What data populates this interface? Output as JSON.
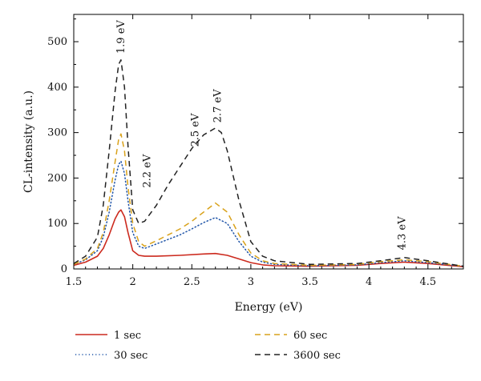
{
  "chart_data": {
    "type": "line",
    "title": "",
    "xlabel": "Energy (eV)",
    "ylabel": "CL-intensity (a.u.)",
    "xlim": [
      1.5,
      4.8
    ],
    "ylim": [
      0,
      560
    ],
    "x_ticks": [
      1.5,
      2,
      2.5,
      3,
      3.5,
      4,
      4.5
    ],
    "x_tick_labels": [
      "1.5",
      "2",
      "2.5",
      "3",
      "3.5",
      "4",
      "4.5"
    ],
    "y_ticks": [
      0,
      100,
      200,
      300,
      400,
      500
    ],
    "y_tick_labels": [
      "0",
      "100",
      "200",
      "300",
      "400",
      "500"
    ],
    "grid": false,
    "legend_position": "bottom",
    "series": [
      {
        "name": "1 sec",
        "color": "#cc2a1e",
        "style": "solid",
        "x": [
          1.5,
          1.6,
          1.7,
          1.75,
          1.8,
          1.85,
          1.88,
          1.9,
          1.93,
          1.96,
          2.0,
          2.05,
          2.1,
          2.2,
          2.4,
          2.6,
          2.7,
          2.8,
          2.9,
          3.0,
          3.1,
          3.2,
          3.5,
          3.9,
          4.1,
          4.3,
          4.5,
          4.8
        ],
        "values": [
          8,
          15,
          28,
          45,
          75,
          110,
          125,
          130,
          115,
          80,
          40,
          30,
          28,
          28,
          30,
          33,
          34,
          30,
          22,
          14,
          9,
          7,
          6,
          8,
          12,
          15,
          12,
          5
        ]
      },
      {
        "name": "30 sec",
        "color": "#2055a8",
        "style": "dotted",
        "x": [
          1.5,
          1.6,
          1.7,
          1.75,
          1.8,
          1.85,
          1.88,
          1.9,
          1.93,
          1.96,
          2.0,
          2.05,
          2.1,
          2.2,
          2.3,
          2.4,
          2.5,
          2.6,
          2.7,
          2.8,
          2.9,
          3.0,
          3.1,
          3.2,
          3.5,
          3.9,
          4.1,
          4.3,
          4.5,
          4.8
        ],
        "values": [
          10,
          20,
          40,
          70,
          125,
          195,
          230,
          237,
          210,
          150,
          80,
          50,
          45,
          55,
          65,
          75,
          88,
          102,
          113,
          100,
          60,
          28,
          15,
          10,
          7,
          9,
          14,
          18,
          14,
          6
        ]
      },
      {
        "name": "60 sec",
        "color": "#d9a21b",
        "style": "dashed",
        "x": [
          1.5,
          1.6,
          1.7,
          1.75,
          1.8,
          1.85,
          1.88,
          1.9,
          1.93,
          1.96,
          2.0,
          2.05,
          2.1,
          2.2,
          2.3,
          2.4,
          2.5,
          2.6,
          2.7,
          2.8,
          2.9,
          3.0,
          3.1,
          3.2,
          3.5,
          3.9,
          4.1,
          4.3,
          4.5,
          4.8
        ],
        "values": [
          10,
          22,
          45,
          80,
          150,
          235,
          285,
          297,
          260,
          180,
          100,
          60,
          50,
          62,
          75,
          88,
          105,
          125,
          145,
          125,
          75,
          35,
          18,
          12,
          8,
          10,
          16,
          20,
          16,
          6
        ]
      },
      {
        "name": "3600 sec",
        "color": "#222222",
        "style": "dashed",
        "x": [
          1.5,
          1.6,
          1.7,
          1.75,
          1.8,
          1.85,
          1.88,
          1.9,
          1.93,
          1.96,
          2.0,
          2.05,
          2.1,
          2.2,
          2.3,
          2.4,
          2.5,
          2.6,
          2.7,
          2.75,
          2.8,
          2.9,
          3.0,
          3.1,
          3.2,
          3.5,
          3.9,
          4.1,
          4.3,
          4.5,
          4.8
        ],
        "values": [
          12,
          28,
          70,
          140,
          260,
          390,
          450,
          460,
          400,
          270,
          130,
          100,
          105,
          140,
          185,
          225,
          265,
          295,
          310,
          300,
          260,
          150,
          60,
          28,
          18,
          10,
          12,
          18,
          25,
          18,
          6
        ]
      }
    ],
    "annotations": [
      {
        "text": "1.9 eV",
        "x": 1.9,
        "y": 470
      },
      {
        "text": "2.2 eV",
        "x": 2.12,
        "y": 175
      },
      {
        "text": "2.5 eV",
        "x": 2.53,
        "y": 265
      },
      {
        "text": "2.7 eV",
        "x": 2.72,
        "y": 318
      },
      {
        "text": "4.3 eV",
        "x": 4.28,
        "y": 38
      }
    ]
  }
}
